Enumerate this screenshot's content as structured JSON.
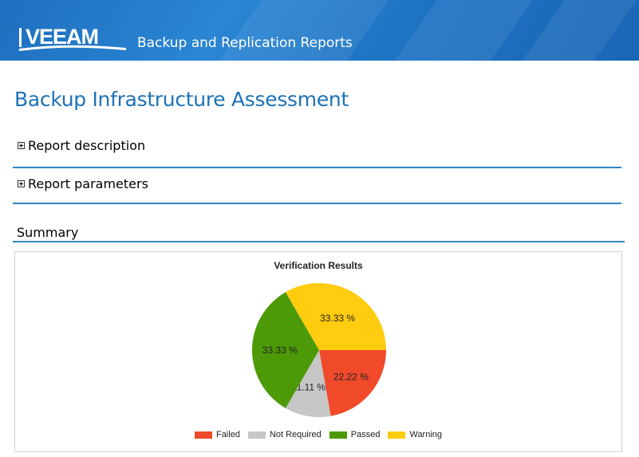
{
  "header": {
    "logo_text": "VEEAM",
    "title": "Backup and Replication Reports"
  },
  "page": {
    "title": "Backup Infrastructure Assessment"
  },
  "sections": {
    "description_label": "Report description",
    "parameters_label": "Report parameters",
    "summary_label": "Summary"
  },
  "chart_data": {
    "type": "pie",
    "title": "Verification Results",
    "slices": [
      {
        "name": "Failed",
        "value": 22.22,
        "label": "22.22 %",
        "color": "#f04a2a"
      },
      {
        "name": "Not Required",
        "value": 11.11,
        "label": "11.11 %",
        "color": "#c6c6c6"
      },
      {
        "name": "Passed",
        "value": 33.33,
        "label": "33.33 %",
        "color": "#4c9a07"
      },
      {
        "name": "Warning",
        "value": 33.33,
        "label": "33.33 %",
        "color": "#ffcc0f"
      }
    ],
    "legend_position": "bottom"
  }
}
